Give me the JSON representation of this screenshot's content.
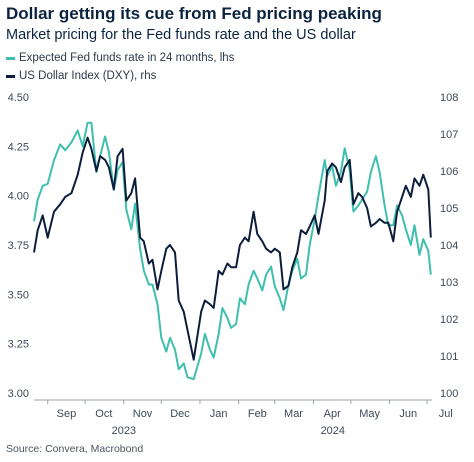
{
  "title": "Dollar getting its cue from Fed pricing peaking",
  "subtitle": "Market pricing for the Fed funds rate and the US dollar",
  "source": "Source: Convera, Macrobond",
  "chart_data": {
    "type": "line",
    "title": "Dollar getting its cue from Fed pricing peaking",
    "subtitle": "Market pricing for the Fed funds rate and the US dollar",
    "x_months": [
      "Sep",
      "Oct",
      "Nov",
      "Dec",
      "Jan",
      "Feb",
      "Mar",
      "Apr",
      "May",
      "Jun",
      "Jul"
    ],
    "x_years": [
      "2023",
      "2024"
    ],
    "x_start": "2023-08-21",
    "x_end": "2024-07-05",
    "y_left": {
      "min": 3.0,
      "max": 4.5,
      "ticks": [
        "3.00",
        "3.25",
        "3.50",
        "3.75",
        "4.00",
        "4.25",
        "4.50"
      ]
    },
    "y_right": {
      "min": 100,
      "max": 108,
      "ticks": [
        "100",
        "101",
        "102",
        "103",
        "104",
        "105",
        "106",
        "107",
        "108"
      ]
    },
    "grid": false,
    "legend_position": "top-left",
    "series": [
      {
        "name": "Expected Fed funds rate in 24 months, lhs",
        "axis": "left",
        "color": "#3fbfad",
        "points": [
          [
            "2023-08-21",
            3.87
          ],
          [
            "2023-08-24",
            3.98
          ],
          [
            "2023-08-28",
            4.05
          ],
          [
            "2023-09-01",
            4.06
          ],
          [
            "2023-09-06",
            4.18
          ],
          [
            "2023-09-11",
            4.26
          ],
          [
            "2023-09-15",
            4.23
          ],
          [
            "2023-09-20",
            4.27
          ],
          [
            "2023-09-25",
            4.33
          ],
          [
            "2023-09-29",
            4.25
          ],
          [
            "2023-10-03",
            4.37
          ],
          [
            "2023-10-06",
            4.37
          ],
          [
            "2023-10-10",
            4.12
          ],
          [
            "2023-10-13",
            4.2
          ],
          [
            "2023-10-17",
            4.3
          ],
          [
            "2023-10-20",
            4.22
          ],
          [
            "2023-10-24",
            4.03
          ],
          [
            "2023-10-27",
            4.13
          ],
          [
            "2023-10-31",
            4.17
          ],
          [
            "2023-11-03",
            3.93
          ],
          [
            "2023-11-07",
            3.83
          ],
          [
            "2023-11-10",
            3.96
          ],
          [
            "2023-11-14",
            3.73
          ],
          [
            "2023-11-17",
            3.62
          ],
          [
            "2023-11-21",
            3.55
          ],
          [
            "2023-11-24",
            3.55
          ],
          [
            "2023-11-28",
            3.45
          ],
          [
            "2023-12-01",
            3.28
          ],
          [
            "2023-12-05",
            3.21
          ],
          [
            "2023-12-08",
            3.28
          ],
          [
            "2023-12-12",
            3.22
          ],
          [
            "2023-12-15",
            3.12
          ],
          [
            "2023-12-19",
            3.15
          ],
          [
            "2023-12-22",
            3.08
          ],
          [
            "2023-12-27",
            3.07
          ],
          [
            "2024-01-02",
            3.2
          ],
          [
            "2024-01-05",
            3.3
          ],
          [
            "2024-01-09",
            3.22
          ],
          [
            "2024-01-12",
            3.18
          ],
          [
            "2024-01-16",
            3.3
          ],
          [
            "2024-01-19",
            3.43
          ],
          [
            "2024-01-23",
            3.38
          ],
          [
            "2024-01-26",
            3.33
          ],
          [
            "2024-01-30",
            3.35
          ],
          [
            "2024-02-02",
            3.48
          ],
          [
            "2024-02-06",
            3.45
          ],
          [
            "2024-02-09",
            3.55
          ],
          [
            "2024-02-13",
            3.62
          ],
          [
            "2024-02-16",
            3.58
          ],
          [
            "2024-02-20",
            3.52
          ],
          [
            "2024-02-23",
            3.6
          ],
          [
            "2024-02-27",
            3.64
          ],
          [
            "2024-03-01",
            3.54
          ],
          [
            "2024-03-05",
            3.48
          ],
          [
            "2024-03-08",
            3.42
          ],
          [
            "2024-03-12",
            3.55
          ],
          [
            "2024-03-15",
            3.62
          ],
          [
            "2024-03-19",
            3.68
          ],
          [
            "2024-03-22",
            3.58
          ],
          [
            "2024-03-26",
            3.6
          ],
          [
            "2024-03-29",
            3.75
          ],
          [
            "2024-04-02",
            3.88
          ],
          [
            "2024-04-05",
            4.0
          ],
          [
            "2024-04-10",
            4.18
          ],
          [
            "2024-04-12",
            4.1
          ],
          [
            "2024-04-16",
            4.15
          ],
          [
            "2024-04-19",
            4.05
          ],
          [
            "2024-04-23",
            4.12
          ],
          [
            "2024-04-26",
            4.24
          ],
          [
            "2024-04-30",
            4.13
          ],
          [
            "2024-05-03",
            3.92
          ],
          [
            "2024-05-07",
            3.95
          ],
          [
            "2024-05-10",
            3.98
          ],
          [
            "2024-05-14",
            4.02
          ],
          [
            "2024-05-17",
            4.12
          ],
          [
            "2024-05-21",
            4.2
          ],
          [
            "2024-05-24",
            4.12
          ],
          [
            "2024-05-28",
            3.95
          ],
          [
            "2024-05-31",
            3.85
          ],
          [
            "2024-06-04",
            3.85
          ],
          [
            "2024-06-07",
            3.95
          ],
          [
            "2024-06-11",
            3.9
          ],
          [
            "2024-06-14",
            3.83
          ],
          [
            "2024-06-18",
            3.75
          ],
          [
            "2024-06-21",
            3.85
          ],
          [
            "2024-06-25",
            3.7
          ],
          [
            "2024-06-28",
            3.78
          ],
          [
            "2024-07-02",
            3.72
          ],
          [
            "2024-07-04",
            3.6
          ]
        ]
      },
      {
        "name": "US Dollar Index (DXY), rhs",
        "axis": "right",
        "color": "#0c1e3c",
        "points": [
          [
            "2023-08-21",
            103.8
          ],
          [
            "2023-08-24",
            104.4
          ],
          [
            "2023-08-28",
            104.8
          ],
          [
            "2023-09-01",
            104.2
          ],
          [
            "2023-09-06",
            104.9
          ],
          [
            "2023-09-11",
            105.1
          ],
          [
            "2023-09-15",
            105.3
          ],
          [
            "2023-09-20",
            105.4
          ],
          [
            "2023-09-25",
            105.9
          ],
          [
            "2023-09-29",
            106.5
          ],
          [
            "2023-10-03",
            106.9
          ],
          [
            "2023-10-06",
            106.6
          ],
          [
            "2023-10-10",
            106.0
          ],
          [
            "2023-10-13",
            106.4
          ],
          [
            "2023-10-17",
            106.3
          ],
          [
            "2023-10-20",
            106.1
          ],
          [
            "2023-10-24",
            105.5
          ],
          [
            "2023-10-27",
            106.4
          ],
          [
            "2023-10-31",
            106.6
          ],
          [
            "2023-11-03",
            105.2
          ],
          [
            "2023-11-07",
            105.4
          ],
          [
            "2023-11-10",
            105.8
          ],
          [
            "2023-11-14",
            104.2
          ],
          [
            "2023-11-17",
            104.1
          ],
          [
            "2023-11-21",
            103.5
          ],
          [
            "2023-11-24",
            103.6
          ],
          [
            "2023-11-28",
            102.8
          ],
          [
            "2023-12-01",
            103.3
          ],
          [
            "2023-12-05",
            103.9
          ],
          [
            "2023-12-08",
            104.0
          ],
          [
            "2023-12-12",
            103.8
          ],
          [
            "2023-12-15",
            102.5
          ],
          [
            "2023-12-19",
            102.2
          ],
          [
            "2023-12-22",
            101.7
          ],
          [
            "2023-12-27",
            100.9
          ],
          [
            "2024-01-02",
            102.2
          ],
          [
            "2024-01-05",
            102.5
          ],
          [
            "2024-01-09",
            102.4
          ],
          [
            "2024-01-12",
            102.3
          ],
          [
            "2024-01-16",
            103.3
          ],
          [
            "2024-01-19",
            103.2
          ],
          [
            "2024-01-23",
            103.5
          ],
          [
            "2024-01-26",
            103.4
          ],
          [
            "2024-01-30",
            103.4
          ],
          [
            "2024-02-02",
            104.0
          ],
          [
            "2024-02-06",
            104.2
          ],
          [
            "2024-02-09",
            104.1
          ],
          [
            "2024-02-13",
            104.9
          ],
          [
            "2024-02-16",
            104.3
          ],
          [
            "2024-02-20",
            104.1
          ],
          [
            "2024-02-23",
            103.9
          ],
          [
            "2024-02-27",
            103.8
          ],
          [
            "2024-03-01",
            103.9
          ],
          [
            "2024-03-05",
            103.8
          ],
          [
            "2024-03-08",
            102.8
          ],
          [
            "2024-03-12",
            102.9
          ],
          [
            "2024-03-15",
            103.4
          ],
          [
            "2024-03-19",
            103.8
          ],
          [
            "2024-03-22",
            104.4
          ],
          [
            "2024-03-26",
            104.3
          ],
          [
            "2024-03-29",
            104.5
          ],
          [
            "2024-04-02",
            104.8
          ],
          [
            "2024-04-05",
            104.3
          ],
          [
            "2024-04-10",
            105.2
          ],
          [
            "2024-04-12",
            106.0
          ],
          [
            "2024-04-16",
            106.2
          ],
          [
            "2024-04-19",
            106.1
          ],
          [
            "2024-04-23",
            105.7
          ],
          [
            "2024-04-26",
            106.1
          ],
          [
            "2024-04-30",
            106.3
          ],
          [
            "2024-05-03",
            105.1
          ],
          [
            "2024-05-07",
            105.4
          ],
          [
            "2024-05-10",
            105.3
          ],
          [
            "2024-05-14",
            105.0
          ],
          [
            "2024-05-17",
            104.5
          ],
          [
            "2024-05-21",
            104.6
          ],
          [
            "2024-05-24",
            104.7
          ],
          [
            "2024-05-28",
            104.6
          ],
          [
            "2024-05-31",
            104.6
          ],
          [
            "2024-06-04",
            104.1
          ],
          [
            "2024-06-07",
            104.9
          ],
          [
            "2024-06-11",
            105.3
          ],
          [
            "2024-06-14",
            105.6
          ],
          [
            "2024-06-18",
            105.3
          ],
          [
            "2024-06-21",
            105.8
          ],
          [
            "2024-06-25",
            105.6
          ],
          [
            "2024-06-28",
            105.9
          ],
          [
            "2024-07-02",
            105.5
          ],
          [
            "2024-07-04",
            104.2
          ]
        ]
      }
    ]
  }
}
